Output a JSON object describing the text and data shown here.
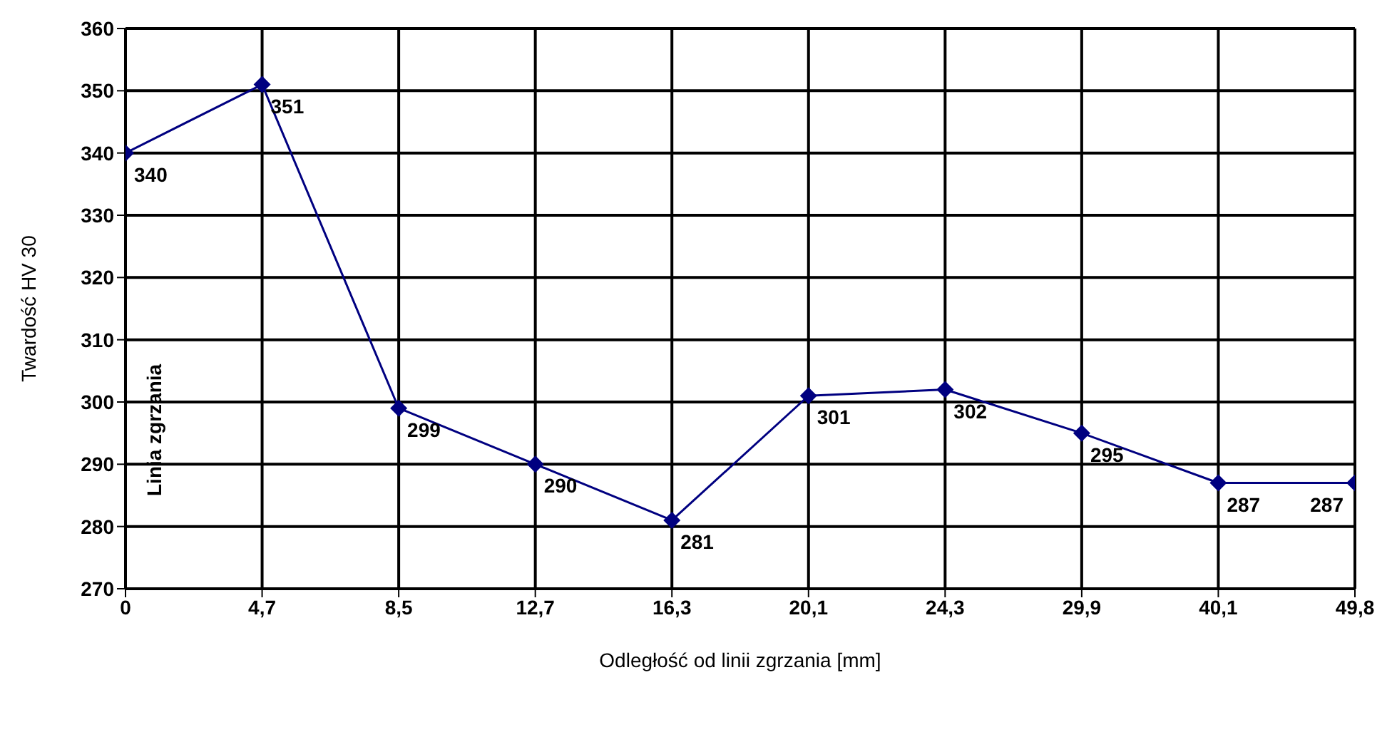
{
  "chart_data": {
    "type": "line",
    "xlabel": "Odległość od linii zgrzania [mm]",
    "ylabel": "Twardość HV 30",
    "categories": [
      "0",
      "4,7",
      "8,5",
      "12,7",
      "16,3",
      "20,1",
      "24,3",
      "29,9",
      "40,1",
      "49,8"
    ],
    "series": [
      {
        "color": "#000080",
        "values": [
          340,
          351,
          299,
          290,
          281,
          301,
          302,
          295,
          287,
          287
        ]
      }
    ],
    "ylim": [
      270,
      360
    ],
    "yticks": [
      270,
      280,
      290,
      300,
      310,
      320,
      330,
      340,
      350,
      360
    ],
    "grid": true,
    "legend": false,
    "marker": "diamond",
    "line_style": "solid",
    "data_labels": true,
    "annotations": [
      "Linia zgrzania"
    ]
  }
}
